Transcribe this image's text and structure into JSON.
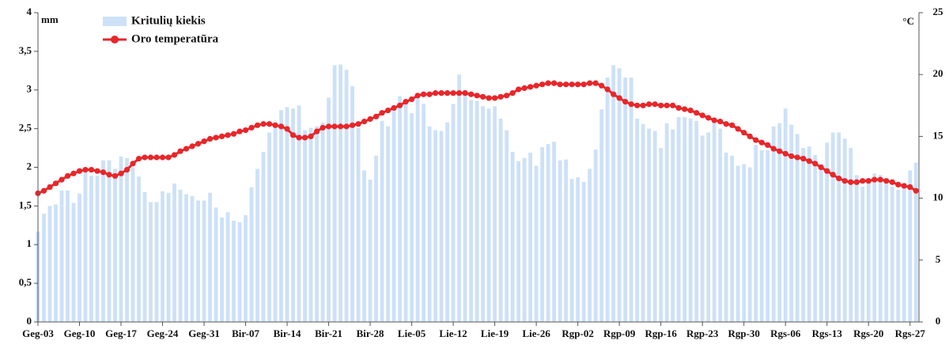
{
  "chart_data": {
    "type": "bar_line",
    "y_label": "mm",
    "y2_label": "°C",
    "legend": "upper left",
    "grid": false,
    "ylim": [
      0,
      4
    ],
    "yticks": [
      0,
      {
        "value": 0.5,
        "label": "0,5"
      },
      1,
      {
        "value": 1.5,
        "label": "1,5"
      },
      2,
      {
        "value": 2.5,
        "label": "2,5"
      },
      3,
      {
        "value": 3.5,
        "label": "3,5"
      },
      4
    ],
    "y2lim": [
      0,
      25
    ],
    "y2ticks": [
      0,
      5,
      10,
      15,
      20,
      25
    ],
    "categories": [
      "Geg-03",
      null,
      null,
      null,
      null,
      null,
      null,
      "Geg-10",
      null,
      null,
      null,
      null,
      null,
      null,
      "Geg-17",
      null,
      null,
      null,
      null,
      null,
      null,
      "Geg-24",
      null,
      null,
      null,
      null,
      null,
      null,
      "Geg-31",
      null,
      null,
      null,
      null,
      null,
      null,
      "Bir-07",
      null,
      null,
      null,
      null,
      null,
      null,
      "Bir-14",
      null,
      null,
      null,
      null,
      null,
      null,
      "Bir-21",
      null,
      null,
      null,
      null,
      null,
      null,
      "Bir-28",
      null,
      null,
      null,
      null,
      null,
      null,
      "Lie-05",
      null,
      null,
      null,
      null,
      null,
      null,
      "Lie-12",
      null,
      null,
      null,
      null,
      null,
      null,
      "Lie-19",
      null,
      null,
      null,
      null,
      null,
      null,
      "Lie-26",
      null,
      null,
      null,
      null,
      null,
      null,
      "Rgp-02",
      null,
      null,
      null,
      null,
      null,
      null,
      "Rgp-09",
      null,
      null,
      null,
      null,
      null,
      null,
      "Rgp-16",
      null,
      null,
      null,
      null,
      null,
      null,
      "Rgp-23",
      null,
      null,
      null,
      null,
      null,
      null,
      "Rgp-30",
      null,
      null,
      null,
      null,
      null,
      null,
      "Rgs-06",
      null,
      null,
      null,
      null,
      null,
      null,
      "Rgs-13",
      null,
      null,
      null,
      null,
      null,
      null,
      "Rgs-20",
      null,
      null,
      null,
      null,
      null,
      null,
      "Rgs-27",
      null
    ],
    "series": [
      {
        "name": "Kritulių kiekis",
        "type": "bar",
        "color": "#cde1f7",
        "values": [
          1.17,
          1.4,
          1.5,
          1.52,
          1.7,
          1.7,
          1.54,
          1.66,
          1.98,
          1.89,
          1.89,
          2.09,
          2.09,
          1.98,
          2.14,
          2.12,
          2.0,
          1.88,
          1.68,
          1.55,
          1.55,
          1.69,
          1.67,
          1.79,
          1.71,
          1.65,
          1.63,
          1.57,
          1.57,
          1.67,
          1.48,
          1.35,
          1.42,
          1.31,
          1.29,
          1.38,
          1.74,
          1.98,
          2.2,
          2.45,
          2.58,
          2.74,
          2.78,
          2.76,
          2.8,
          2.48,
          2.51,
          2.53,
          2.58,
          2.9,
          3.32,
          3.33,
          3.26,
          3.05,
          2.51,
          1.96,
          1.84,
          2.15,
          2.6,
          2.53,
          2.75,
          2.92,
          2.85,
          2.7,
          2.93,
          2.82,
          2.53,
          2.48,
          2.47,
          2.58,
          2.82,
          3.2,
          3.0,
          2.87,
          2.86,
          2.79,
          2.76,
          2.79,
          2.63,
          2.48,
          2.2,
          2.08,
          2.12,
          2.19,
          2.02,
          2.26,
          2.3,
          2.33,
          2.09,
          2.1,
          1.85,
          1.87,
          1.81,
          1.98,
          2.23,
          2.75,
          3.16,
          3.32,
          3.28,
          3.16,
          3.16,
          2.63,
          2.56,
          2.5,
          2.47,
          2.25,
          2.57,
          2.49,
          2.65,
          2.65,
          2.63,
          2.6,
          2.41,
          2.45,
          2.58,
          2.5,
          2.19,
          2.15,
          2.02,
          2.04,
          2.0,
          2.29,
          2.22,
          2.22,
          2.53,
          2.57,
          2.76,
          2.55,
          2.43,
          2.25,
          2.27,
          2.16,
          2.04,
          2.32,
          2.45,
          2.45,
          2.37,
          2.25,
          1.9,
          1.75,
          1.86,
          1.92,
          1.9,
          1.84,
          1.75,
          1.71,
          1.76,
          1.96,
          2.06
        ]
      },
      {
        "name": "Oro temperatūra",
        "type": "line",
        "axis": "y2",
        "color": "#e8262a",
        "values": [
          10.4,
          10.6,
          10.9,
          11.2,
          11.5,
          11.8,
          12.0,
          12.2,
          12.3,
          12.3,
          12.2,
          12.1,
          11.9,
          11.8,
          12.0,
          12.3,
          12.8,
          13.2,
          13.3,
          13.3,
          13.3,
          13.3,
          13.3,
          13.5,
          13.8,
          14.0,
          14.2,
          14.4,
          14.6,
          14.8,
          14.9,
          15.0,
          15.1,
          15.2,
          15.4,
          15.5,
          15.7,
          15.9,
          16.0,
          16.0,
          15.9,
          15.8,
          15.6,
          15.1,
          14.9,
          14.9,
          15.0,
          15.4,
          15.7,
          15.8,
          15.8,
          15.8,
          15.8,
          15.9,
          16.0,
          16.2,
          16.4,
          16.6,
          16.9,
          17.1,
          17.3,
          17.5,
          17.8,
          18.0,
          18.3,
          18.4,
          18.4,
          18.5,
          18.5,
          18.5,
          18.5,
          18.5,
          18.5,
          18.4,
          18.3,
          18.2,
          18.1,
          18.1,
          18.2,
          18.3,
          18.5,
          18.8,
          18.9,
          19.0,
          19.1,
          19.2,
          19.3,
          19.3,
          19.2,
          19.2,
          19.2,
          19.2,
          19.2,
          19.3,
          19.3,
          19.1,
          18.8,
          18.4,
          18.1,
          17.8,
          17.6,
          17.5,
          17.5,
          17.6,
          17.6,
          17.5,
          17.5,
          17.5,
          17.3,
          17.2,
          17.1,
          16.9,
          16.7,
          16.5,
          16.3,
          16.2,
          16.0,
          15.9,
          15.6,
          15.3,
          15.0,
          14.7,
          14.5,
          14.3,
          14.0,
          13.8,
          13.6,
          13.4,
          13.3,
          13.2,
          13.0,
          12.8,
          12.5,
          12.2,
          11.9,
          11.6,
          11.4,
          11.3,
          11.3,
          11.4,
          11.4,
          11.5,
          11.5,
          11.4,
          11.3,
          11.1,
          11.0,
          10.9,
          10.6
        ]
      }
    ]
  }
}
